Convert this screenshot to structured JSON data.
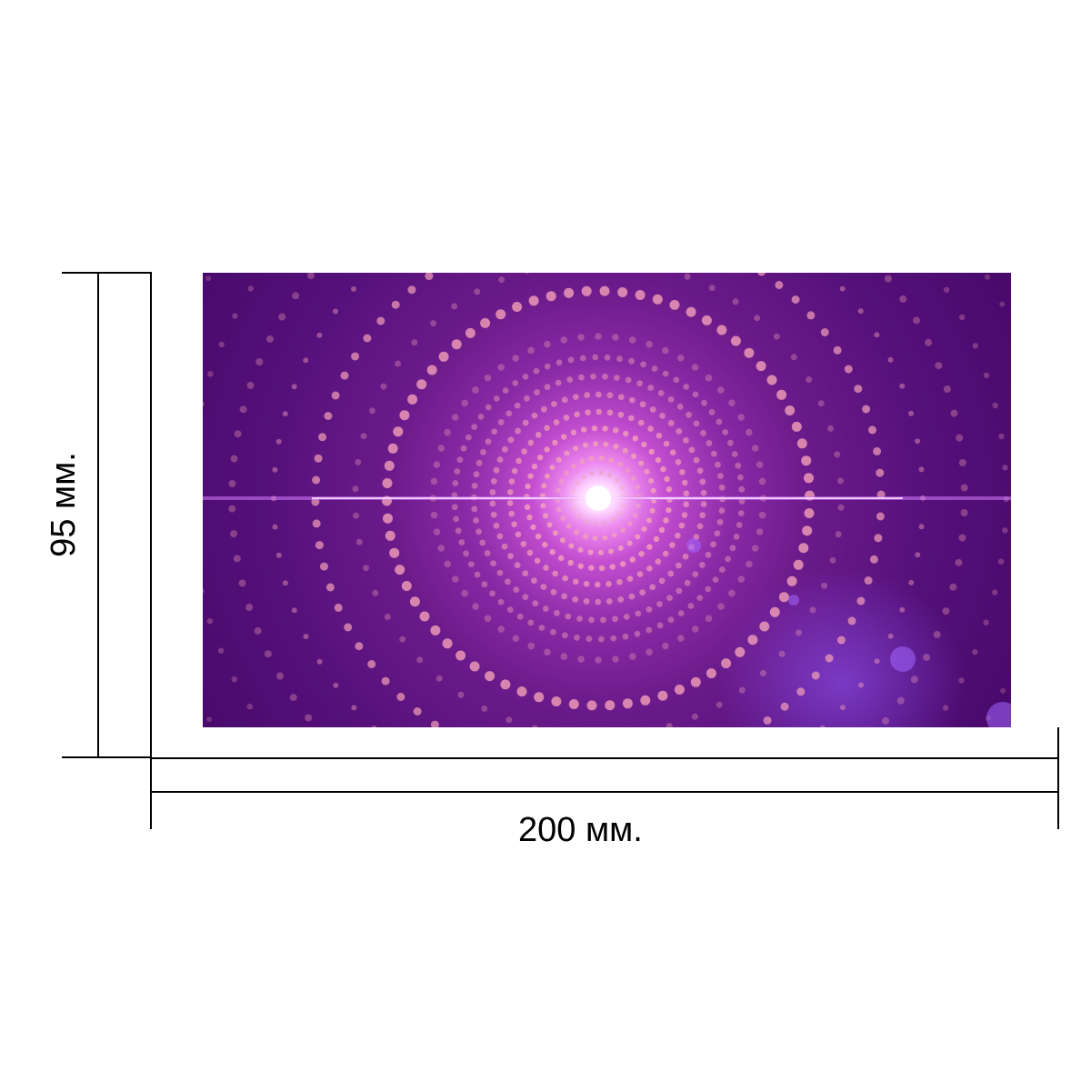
{
  "dimensions": {
    "width_label": "200 мм.",
    "height_label": "95 мм."
  },
  "image": {
    "icon": "purple-radial-light-burst-image",
    "colors": {
      "background_dark": "#48096a",
      "background_mid": "#6a1a8a",
      "glow": "#c44fd1",
      "core": "#ffffff",
      "dots": "#f2a0b8"
    }
  }
}
